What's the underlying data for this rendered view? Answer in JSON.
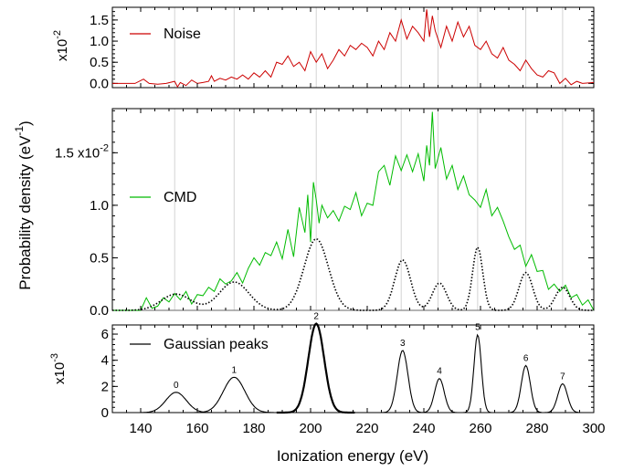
{
  "chart_data": [
    {
      "id": "noise",
      "type": "line",
      "xlim": [
        130,
        300
      ],
      "ylim": [
        -0.1,
        1.8
      ],
      "y_multiplier_label": "x10",
      "y_multiplier_exp": "-2",
      "yticks": [
        0.0,
        0.5,
        1.0,
        1.5
      ],
      "ytick_labels": [
        "0.0",
        "0.5",
        "1.0",
        "1.5"
      ],
      "gridlines_x": [
        152,
        173,
        202,
        232,
        245,
        259,
        276,
        289
      ],
      "series": [
        {
          "name": "Noise",
          "color": "#cc0000",
          "x": [
            130,
            138,
            141,
            143,
            146,
            149,
            152,
            153,
            154,
            156,
            158,
            160,
            162,
            164,
            165,
            166,
            168,
            170,
            172,
            174,
            176,
            178,
            180,
            182,
            184,
            186,
            188,
            190,
            192,
            194,
            196,
            198,
            200,
            202,
            204,
            206,
            208,
            210,
            212,
            214,
            216,
            218,
            220,
            222,
            224,
            226,
            228,
            230,
            232,
            234,
            236,
            238,
            240,
            241,
            242,
            243,
            244,
            246,
            248,
            250,
            252,
            254,
            256,
            258,
            260,
            262,
            264,
            266,
            268,
            270,
            272,
            274,
            276,
            278,
            280,
            282,
            284,
            286,
            288,
            290,
            292,
            294,
            296,
            300
          ],
          "y": [
            0.0,
            0.0,
            0.1,
            0.0,
            -0.02,
            0.0,
            0.05,
            -0.08,
            0.02,
            -0.05,
            0.08,
            0.0,
            0.02,
            0.05,
            0.18,
            0.05,
            0.12,
            0.08,
            0.15,
            0.1,
            0.2,
            0.1,
            0.25,
            0.15,
            0.3,
            0.15,
            0.5,
            0.45,
            0.65,
            0.4,
            0.5,
            0.3,
            0.75,
            0.5,
            0.7,
            0.35,
            0.55,
            0.8,
            0.65,
            0.9,
            0.8,
            0.95,
            0.85,
            0.65,
            1.0,
            0.8,
            1.2,
            1.0,
            1.5,
            1.05,
            1.35,
            1.2,
            1.0,
            1.75,
            1.1,
            1.6,
            1.25,
            0.85,
            1.35,
            1.0,
            1.45,
            1.1,
            1.35,
            0.9,
            0.8,
            1.0,
            0.7,
            0.6,
            0.85,
            0.55,
            0.45,
            0.3,
            0.55,
            0.35,
            0.2,
            0.15,
            0.3,
            0.25,
            0.0,
            0.12,
            -0.03,
            0.05,
            0.0,
            0.02
          ]
        }
      ]
    },
    {
      "id": "cmd",
      "type": "line",
      "xlim": [
        130,
        300
      ],
      "ylim": [
        0,
        0.0192
      ],
      "ylabel": "Probability density (eV",
      "ylabel_exp": "-1",
      "ylabel_close": ")",
      "yticks": [
        0.0,
        0.005,
        0.01,
        0.015
      ],
      "ytick_labels": [
        "0.0",
        "0.5",
        "1.0",
        "1.5 x10"
      ],
      "ytick_exp": "-2",
      "gridlines_x": [
        152,
        173,
        202,
        232,
        245,
        259,
        276,
        289
      ],
      "series": [
        {
          "name": "CMD",
          "color": "#00bb00",
          "x": [
            130,
            136,
            140,
            142,
            144,
            146,
            148,
            150,
            152,
            154,
            156,
            158,
            160,
            162,
            164,
            166,
            168,
            170,
            172,
            174,
            176,
            178,
            180,
            182,
            184,
            186,
            188,
            190,
            192,
            194,
            196,
            198,
            199,
            200,
            201,
            202,
            203,
            204,
            206,
            208,
            210,
            212,
            214,
            216,
            218,
            220,
            222,
            224,
            226,
            228,
            230,
            232,
            234,
            236,
            238,
            240,
            241,
            242,
            243,
            244,
            246,
            248,
            250,
            252,
            254,
            256,
            258,
            260,
            262,
            264,
            266,
            268,
            270,
            272,
            274,
            276,
            278,
            280,
            282,
            284,
            286,
            288,
            290,
            292,
            294,
            296,
            298,
            300
          ],
          "y": [
            0.0,
            0.0,
            0.0,
            0.0012,
            0.0002,
            0.0004,
            0.0012,
            0.0008,
            0.0016,
            0.001,
            0.0018,
            0.0006,
            0.0015,
            0.0014,
            0.0022,
            0.0018,
            0.003,
            0.0025,
            0.0028,
            0.0036,
            0.0026,
            0.004,
            0.005,
            0.0043,
            0.0055,
            0.0052,
            0.0065,
            0.0049,
            0.0077,
            0.0051,
            0.0098,
            0.0074,
            0.011,
            0.0065,
            0.0122,
            0.0105,
            0.0083,
            0.01,
            0.0088,
            0.0095,
            0.0085,
            0.0099,
            0.0096,
            0.0112,
            0.009,
            0.0102,
            0.01,
            0.0132,
            0.0138,
            0.0119,
            0.0147,
            0.0133,
            0.0148,
            0.0132,
            0.0149,
            0.0123,
            0.0157,
            0.0138,
            0.0189,
            0.0135,
            0.0155,
            0.0125,
            0.0138,
            0.0115,
            0.0128,
            0.011,
            0.0105,
            0.0098,
            0.0115,
            0.009,
            0.0098,
            0.0085,
            0.007,
            0.0058,
            0.0062,
            0.0042,
            0.0053,
            0.0037,
            0.0038,
            0.002,
            0.0025,
            0.0018,
            0.0024,
            0.0012,
            0.0015,
            0.0005,
            0.001,
            0.0
          ]
        },
        {
          "name": "",
          "color": "#000000",
          "dotted": true,
          "peaks": [
            {
              "center": 152.5,
              "amp": 0.00155,
              "sigma": 5.2
            },
            {
              "center": 173.0,
              "amp": 0.0027,
              "sigma": 5.2
            },
            {
              "center": 202.0,
              "amp": 0.0068,
              "sigma": 4.3
            },
            {
              "center": 232.5,
              "amp": 0.0048,
              "sigma": 2.8
            },
            {
              "center": 245.5,
              "amp": 0.0026,
              "sigma": 2.5
            },
            {
              "center": 259.0,
              "amp": 0.006,
              "sigma": 1.8
            },
            {
              "center": 276.0,
              "amp": 0.0036,
              "sigma": 2.4
            },
            {
              "center": 289.0,
              "amp": 0.0022,
              "sigma": 2.5
            }
          ]
        }
      ]
    },
    {
      "id": "gaussian",
      "type": "line",
      "xlim": [
        130,
        300
      ],
      "ylim": [
        0,
        6.7
      ],
      "xlabel": "Ionization energy (eV)",
      "xticks": [
        140,
        160,
        180,
        200,
        220,
        240,
        260,
        280,
        300
      ],
      "xtick_labels": [
        "140",
        "160",
        "180",
        "200",
        "220",
        "240",
        "260",
        "280",
        "300"
      ],
      "y_multiplier_label": "x10",
      "y_multiplier_exp": "-3",
      "yticks": [
        0,
        2,
        4,
        6
      ],
      "ytick_labels": [
        "0",
        "2",
        "4",
        "6"
      ],
      "series": [
        {
          "name": "Gaussian peaks",
          "color": "#000000",
          "peaks": [
            {
              "label": "0",
              "center": 152.5,
              "amp": 1.55,
              "sigma": 3.6
            },
            {
              "label": "1",
              "center": 173.0,
              "amp": 2.7,
              "sigma": 3.8
            },
            {
              "label": "2",
              "center": 202.0,
              "amp": 6.8,
              "sigma": 2.8,
              "bold": true
            },
            {
              "label": "3",
              "center": 232.5,
              "amp": 4.75,
              "sigma": 1.9
            },
            {
              "label": "4",
              "center": 245.5,
              "amp": 2.6,
              "sigma": 1.7
            },
            {
              "label": "5",
              "center": 259.0,
              "amp": 5.95,
              "sigma": 1.3
            },
            {
              "label": "6",
              "center": 276.0,
              "amp": 3.6,
              "sigma": 1.6
            },
            {
              "label": "7",
              "center": 289.0,
              "amp": 2.2,
              "sigma": 1.7
            }
          ]
        }
      ]
    }
  ]
}
